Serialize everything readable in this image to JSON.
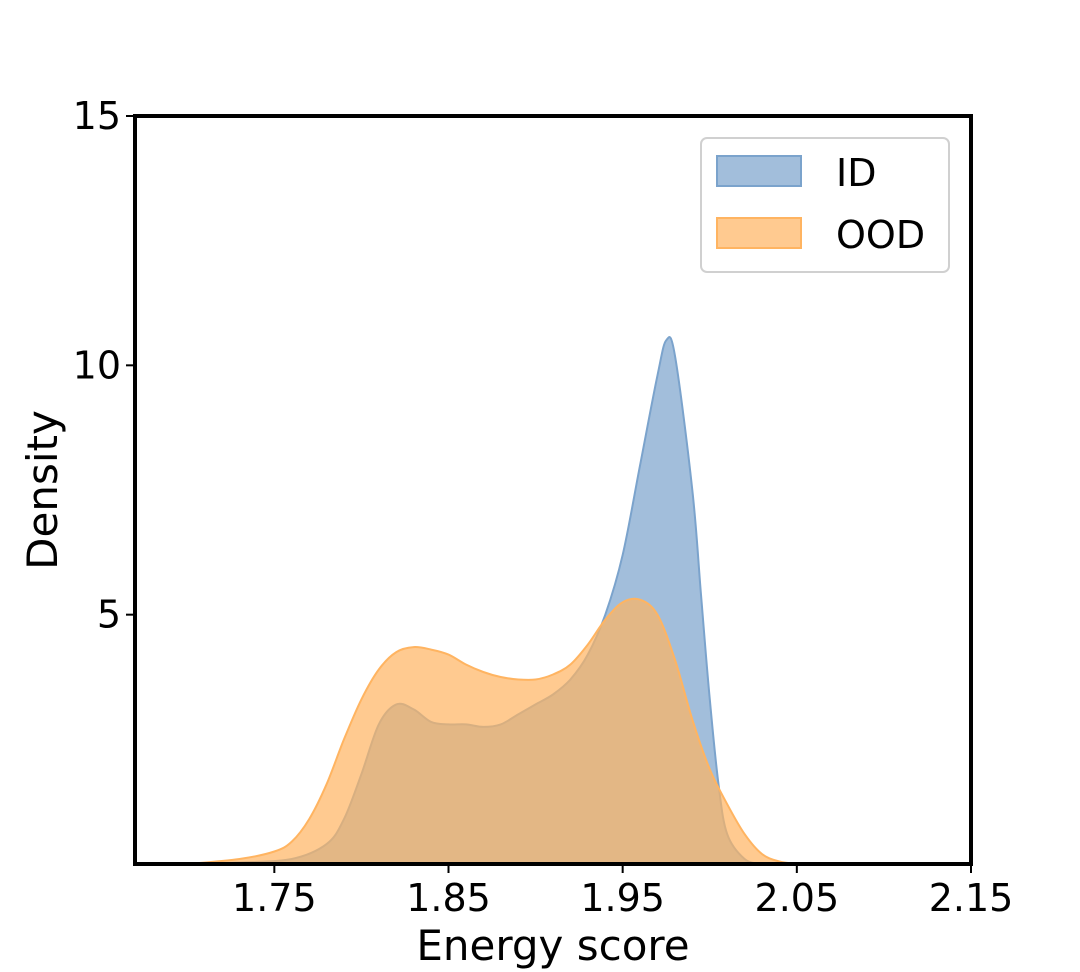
{
  "chart_data": {
    "type": "area",
    "title": "",
    "xlabel": "Energy score",
    "ylabel": "Density",
    "xlim": [
      1.67,
      2.15
    ],
    "ylim": [
      0,
      15
    ],
    "xticks": [
      1.75,
      1.85,
      1.95,
      2.05,
      2.15
    ],
    "xtick_labels": [
      "1.75",
      "1.85",
      "1.95",
      "2.05",
      "2.15"
    ],
    "yticks": [
      5,
      10,
      15
    ],
    "ytick_labels": [
      "5",
      "10",
      "15"
    ],
    "grid": false,
    "legend_position": "top-right",
    "series": [
      {
        "name": "ID",
        "color": "#7ba3cc",
        "x": [
          1.7,
          1.73,
          1.76,
          1.78,
          1.79,
          1.8,
          1.81,
          1.82,
          1.83,
          1.84,
          1.85,
          1.86,
          1.87,
          1.88,
          1.89,
          1.9,
          1.91,
          1.92,
          1.93,
          1.94,
          1.95,
          1.96,
          1.97,
          1.975,
          1.98,
          1.99,
          1.995,
          2.0,
          2.005,
          2.01,
          2.02,
          2.03
        ],
        "y": [
          0.0,
          0.03,
          0.1,
          0.4,
          0.9,
          1.8,
          2.8,
          3.2,
          3.1,
          2.85,
          2.8,
          2.8,
          2.75,
          2.8,
          3.0,
          3.2,
          3.4,
          3.7,
          4.2,
          5.0,
          6.2,
          8.0,
          9.8,
          10.5,
          10.2,
          7.5,
          5.4,
          3.3,
          1.6,
          0.6,
          0.1,
          0.0
        ]
      },
      {
        "name": "OOD",
        "color": "#ffb461",
        "x": [
          1.7,
          1.73,
          1.75,
          1.76,
          1.77,
          1.78,
          1.79,
          1.8,
          1.81,
          1.82,
          1.83,
          1.84,
          1.85,
          1.86,
          1.87,
          1.88,
          1.89,
          1.9,
          1.91,
          1.92,
          1.93,
          1.94,
          1.95,
          1.96,
          1.97,
          1.98,
          1.99,
          2.0,
          2.01,
          2.02,
          2.03,
          2.04,
          2.05
        ],
        "y": [
          0.0,
          0.1,
          0.25,
          0.45,
          0.9,
          1.6,
          2.5,
          3.3,
          3.9,
          4.25,
          4.35,
          4.3,
          4.2,
          4.0,
          3.85,
          3.75,
          3.7,
          3.7,
          3.8,
          4.0,
          4.4,
          4.9,
          5.25,
          5.3,
          5.0,
          4.1,
          2.9,
          1.9,
          1.2,
          0.6,
          0.2,
          0.05,
          0.0
        ]
      }
    ]
  }
}
